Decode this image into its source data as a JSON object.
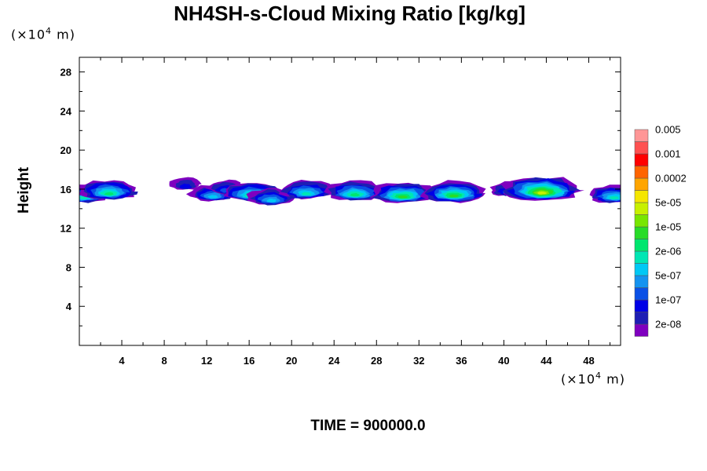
{
  "chart_data": {
    "type": "heatmap",
    "title": "NH4SH-s-Cloud Mixing Ratio [kg/kg]",
    "ylabel": "Height",
    "x_unit": {
      "prefix": "(×10",
      "exp": "4",
      "suffix": " m)"
    },
    "y_unit": {
      "prefix": "(×10",
      "exp": "4",
      "suffix": " m)"
    },
    "xlim": [
      0,
      51
    ],
    "ylim": [
      0,
      29.5
    ],
    "x_ticks": [
      4,
      8,
      12,
      16,
      20,
      24,
      28,
      32,
      36,
      40,
      44,
      48
    ],
    "y_ticks": [
      4,
      8,
      12,
      16,
      20,
      24,
      28
    ],
    "colorbar": {
      "colors": [
        "#7f00bf",
        "#1e1eb4",
        "#0000e6",
        "#0a50e6",
        "#1493f0",
        "#00c8f5",
        "#00e6b4",
        "#00e66e",
        "#28dc28",
        "#78e600",
        "#c8f000",
        "#f5e600",
        "#ffa500",
        "#ff6400",
        "#ff0000",
        "#ff5050",
        "#ff9696"
      ],
      "labels": [
        "2e-08",
        "1e-07",
        "5e-07",
        "2e-06",
        "1e-05",
        "5e-05",
        "0.0002",
        "0.001",
        "0.005"
      ]
    },
    "cloud_cells": [
      {
        "x": 0.4,
        "y": 15.4,
        "max_level": 6
      },
      {
        "x": 2.8,
        "y": 15.8,
        "max_level": 7
      },
      {
        "x": 10.0,
        "y": 16.5,
        "max_level": 2
      },
      {
        "x": 12.6,
        "y": 15.5,
        "max_level": 5
      },
      {
        "x": 13.8,
        "y": 16.1,
        "max_level": 3
      },
      {
        "x": 16.3,
        "y": 15.6,
        "max_level": 7
      },
      {
        "x": 18.1,
        "y": 15.1,
        "max_level": 5
      },
      {
        "x": 21.4,
        "y": 15.8,
        "max_level": 6
      },
      {
        "x": 26.0,
        "y": 15.7,
        "max_level": 7
      },
      {
        "x": 30.5,
        "y": 15.5,
        "max_level": 8
      },
      {
        "x": 35.3,
        "y": 15.6,
        "max_level": 8
      },
      {
        "x": 40.4,
        "y": 15.9,
        "max_level": 3
      },
      {
        "x": 43.6,
        "y": 15.9,
        "max_level": 10
      },
      {
        "x": 50.4,
        "y": 15.4,
        "max_level": 6
      }
    ]
  },
  "footer": {
    "time_label": "TIME = 900000.0"
  }
}
